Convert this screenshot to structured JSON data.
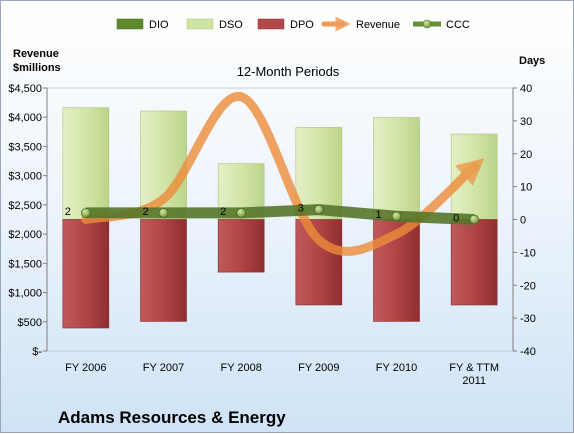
{
  "chart_data": {
    "type": "bar",
    "title": "Adams Resources & Energy",
    "subtitle": "12-Month Periods",
    "left_axis_title": [
      "Revenue",
      "$millions"
    ],
    "right_axis_title": "Days",
    "categories": [
      [
        "FY 2006"
      ],
      [
        "FY 2007"
      ],
      [
        "FY 2008"
      ],
      [
        "FY 2009"
      ],
      [
        "FY 2010"
      ],
      [
        "FY & TTM",
        "2011"
      ]
    ],
    "left_ticks": [
      "$-",
      "$500",
      "$1,000",
      "$1,500",
      "$2,000",
      "$2,500",
      "$3,000",
      "$3,500",
      "$4,000",
      "$4,500"
    ],
    "right_ticks": [
      "-40",
      "-30",
      "-20",
      "-10",
      "0",
      "10",
      "20",
      "30",
      "40"
    ],
    "left_ylim": [
      0,
      4500
    ],
    "right_ylim": [
      -40,
      40
    ],
    "legend": [
      "DIO",
      "DSO",
      "DPO",
      "Revenue",
      "CCC"
    ],
    "series": [
      {
        "name": "DIO",
        "values": [
          0,
          0,
          0,
          0,
          0,
          0
        ],
        "color": "#5f8a2b"
      },
      {
        "name": "DSO",
        "values": [
          34,
          33,
          17,
          28,
          31,
          26
        ],
        "color": "#cfe3a4"
      },
      {
        "name": "DPO",
        "values": [
          -33,
          -31,
          -16,
          -26,
          -31,
          -26
        ],
        "color": "#b3484a"
      },
      {
        "name": "Revenue",
        "values": [
          2250,
          2600,
          4350,
          1900,
          2000,
          3150
        ],
        "color": "#ee8c3a",
        "axis": "left"
      },
      {
        "name": "CCC",
        "values": [
          2,
          2,
          2,
          3,
          1,
          0
        ],
        "color": "#6a8f33"
      }
    ],
    "ccc_labels": [
      "2",
      "2",
      "2",
      "3",
      "1",
      "0"
    ]
  }
}
